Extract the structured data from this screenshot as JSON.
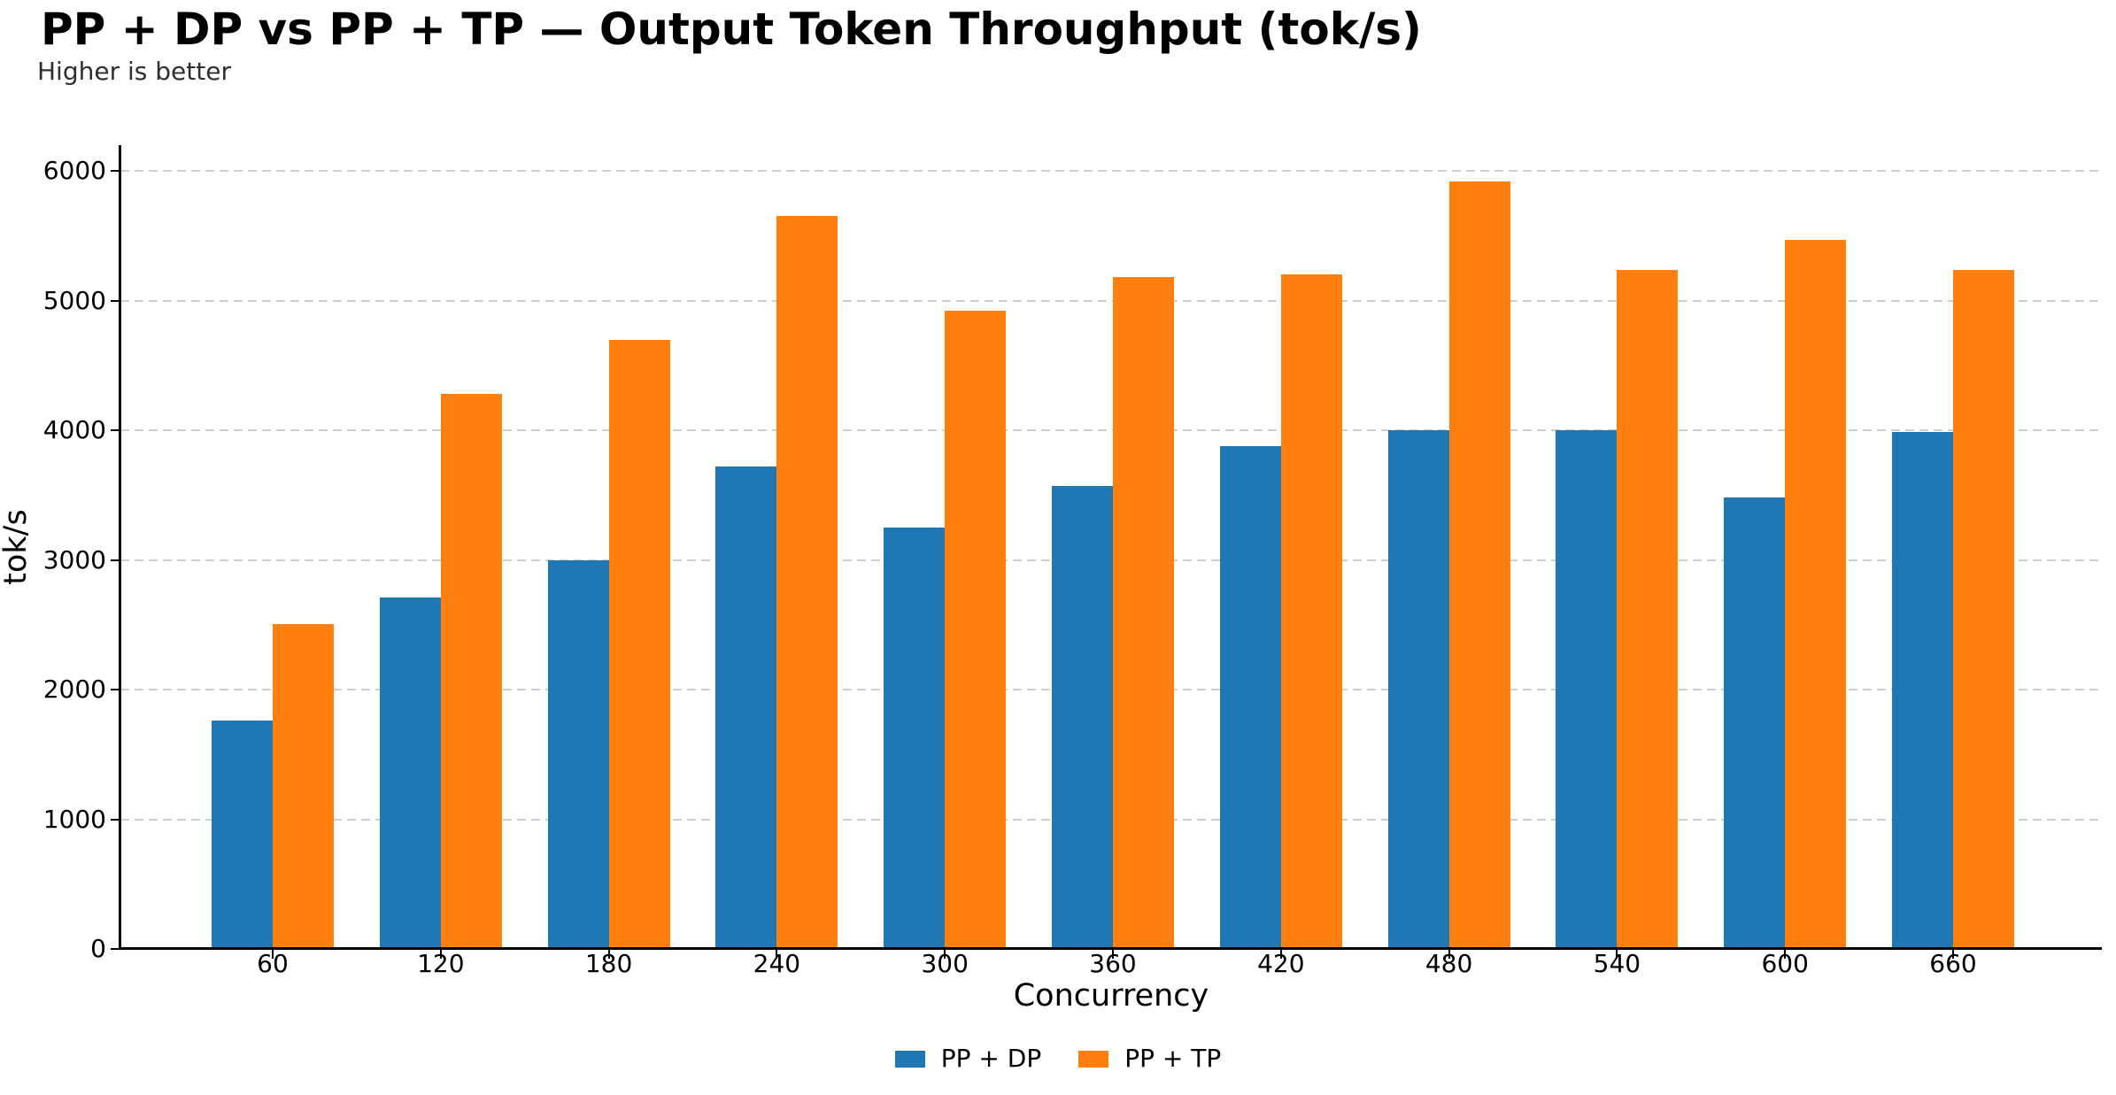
{
  "header": {
    "title": "PP + DP vs PP + TP — Output Token Throughput (tok/s)",
    "subtitle": "Higher is better"
  },
  "chart_data": {
    "type": "bar",
    "title": "PP + DP vs PP + TP — Output Token Throughput (tok/s)",
    "subtitle": "Higher is better",
    "xlabel": "Concurrency",
    "ylabel": "tok/s",
    "categories": [
      "60",
      "120",
      "180",
      "240",
      "300",
      "360",
      "420",
      "480",
      "540",
      "600",
      "660"
    ],
    "series": [
      {
        "name": "PP + DP",
        "color": "#1f77b4",
        "values": [
          1760,
          2710,
          3000,
          3720,
          3250,
          3570,
          3880,
          4000,
          4000,
          3480,
          3990
        ]
      },
      {
        "name": "PP + TP",
        "color": "#ff7f0e",
        "values": [
          2505,
          4280,
          4700,
          5655,
          4920,
          5180,
          5200,
          5920,
          5240,
          5470,
          5240
        ]
      }
    ],
    "ylim": [
      0,
      6200
    ],
    "yticks": [
      0,
      1000,
      2000,
      3000,
      4000,
      5000,
      6000
    ],
    "grid": "horizontal-dashed",
    "gridline_color": "#cfcfcf",
    "legend_position": "bottom-center",
    "axis_color": "#000000"
  }
}
